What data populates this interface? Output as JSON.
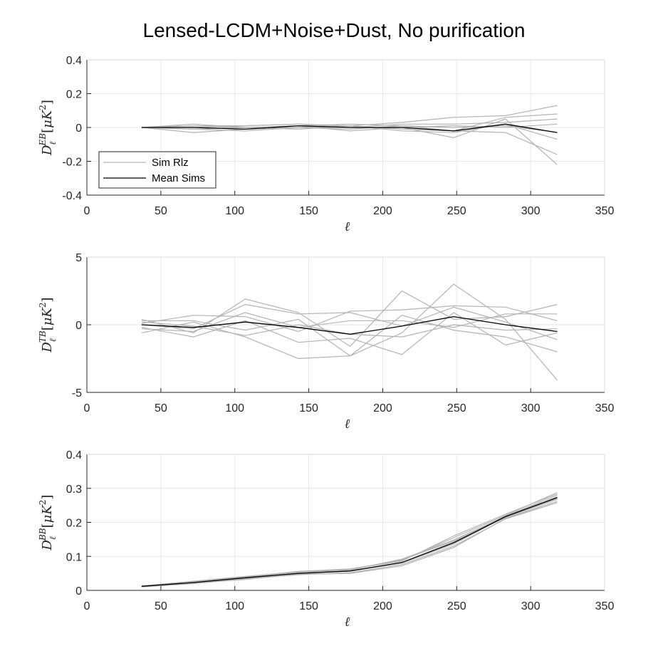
{
  "figure": {
    "title": "Lensed-LCDM+Noise+Dust, No purification",
    "background": "#ffffff"
  },
  "legend": {
    "entries": [
      {
        "label": "Sim Rlz",
        "color": "#b3b3b3"
      },
      {
        "label": "Mean Sims",
        "color": "#000000"
      }
    ],
    "location": "lower-left of top panel"
  },
  "chart_data": [
    {
      "type": "line",
      "panel": "EB",
      "xlabel": "ℓ",
      "ylabel": "D_ℓ^{EB} [μK²]",
      "ylabel_display": {
        "base": "D",
        "sub": "ℓ",
        "sup": "EB",
        "unit_open": "[",
        "mu": "μ",
        "K": "K",
        "unit_sup": "2",
        "unit_close": "]"
      },
      "xlim": [
        0,
        350
      ],
      "ylim": [
        -0.4,
        0.4
      ],
      "xticks": [
        0,
        50,
        100,
        150,
        200,
        250,
        300,
        350
      ],
      "yticks": [
        -0.4,
        -0.2,
        0,
        0.2,
        0.4
      ],
      "ytick_labels": [
        "-0.4",
        "-0.2",
        "0",
        "0.2",
        "0.4"
      ],
      "grid": true,
      "x": [
        37,
        72,
        107,
        143,
        178,
        213,
        248,
        283,
        318
      ],
      "sim_color": "#b3b3b3",
      "mean_color": "#000000",
      "sims": [
        [
          0.0,
          0.01,
          0.01,
          0.02,
          0.01,
          0.03,
          0.06,
          0.07,
          0.13
        ],
        [
          0.0,
          -0.01,
          0.0,
          0.01,
          0.02,
          0.01,
          -0.02,
          0.06,
          0.08
        ],
        [
          0.0,
          0.0,
          -0.01,
          0.0,
          0.0,
          0.02,
          0.02,
          0.03,
          0.05
        ],
        [
          0.0,
          -0.03,
          -0.01,
          0.01,
          -0.02,
          0.0,
          -0.06,
          0.05,
          -0.22
        ],
        [
          0.0,
          0.02,
          0.0,
          -0.01,
          0.01,
          -0.01,
          -0.02,
          -0.03,
          -0.16
        ],
        [
          0.0,
          0.0,
          0.01,
          0.02,
          0.0,
          0.0,
          0.01,
          0.0,
          0.02
        ],
        [
          0.0,
          -0.01,
          -0.02,
          0.0,
          0.01,
          -0.02,
          -0.03,
          0.02,
          -0.07
        ],
        [
          0.0,
          0.01,
          0.0,
          0.0,
          -0.01,
          0.01,
          0.0,
          0.01,
          -0.03
        ]
      ],
      "mean": [
        0.0,
        0.0,
        -0.01,
        0.01,
        0.0,
        0.0,
        -0.02,
        0.02,
        -0.03
      ]
    },
    {
      "type": "line",
      "panel": "TB",
      "xlabel": "ℓ",
      "ylabel": "D_ℓ^{TB} [μK²]",
      "ylabel_display": {
        "base": "D",
        "sub": "ℓ",
        "sup": "TB",
        "unit_open": "[",
        "mu": "μ",
        "K": "K",
        "unit_sup": "2",
        "unit_close": "]"
      },
      "xlim": [
        0,
        350
      ],
      "ylim": [
        -5,
        5
      ],
      "xticks": [
        0,
        50,
        100,
        150,
        200,
        250,
        300,
        350
      ],
      "yticks": [
        -5,
        0,
        5
      ],
      "ytick_labels": [
        "-5",
        "0",
        "5"
      ],
      "grid": true,
      "x": [
        37,
        72,
        107,
        143,
        178,
        213,
        248,
        283,
        318
      ],
      "sim_color": "#b3b3b3",
      "mean_color": "#000000",
      "sims": [
        [
          0.4,
          -0.6,
          1.9,
          0.9,
          -1.6,
          2.5,
          0.4,
          0.6,
          1.5
        ],
        [
          -0.6,
          0.2,
          -0.9,
          -2.5,
          -2.3,
          -0.6,
          3.0,
          0.4,
          -4.1
        ],
        [
          0.1,
          0.7,
          0.6,
          -0.5,
          1.0,
          1.1,
          1.4,
          1.3,
          0.3
        ],
        [
          -0.2,
          -0.9,
          0.3,
          -1.3,
          -1.0,
          -2.2,
          0.9,
          -1.5,
          -0.6
        ],
        [
          0.3,
          0.3,
          -0.4,
          0.4,
          -2.3,
          0.7,
          -0.4,
          -0.9,
          -2.0
        ],
        [
          0.0,
          -0.3,
          1.5,
          0.8,
          0.9,
          -0.1,
          1.3,
          0.2,
          -1.1
        ],
        [
          -0.3,
          -0.5,
          0.9,
          -0.2,
          0.3,
          0.3,
          -0.2,
          0.8,
          0.8
        ],
        [
          0.2,
          -0.1,
          -0.8,
          0.0,
          -0.7,
          -0.9,
          0.0,
          -0.4,
          -0.3
        ]
      ],
      "mean": [
        0.0,
        -0.2,
        0.2,
        -0.2,
        -0.7,
        -0.1,
        0.6,
        0.0,
        -0.5
      ]
    },
    {
      "type": "line",
      "panel": "BB",
      "xlabel": "ℓ",
      "ylabel": "D_ℓ^{BB} [μK²]",
      "ylabel_display": {
        "base": "D",
        "sub": "ℓ",
        "sup": "BB",
        "unit_open": "[",
        "mu": "μ",
        "K": "K",
        "unit_sup": "2",
        "unit_close": "]"
      },
      "xlim": [
        0,
        350
      ],
      "ylim": [
        0,
        0.4
      ],
      "xticks": [
        0,
        50,
        100,
        150,
        200,
        250,
        300,
        350
      ],
      "yticks": [
        0,
        0.1,
        0.2,
        0.3,
        0.4
      ],
      "ytick_labels": [
        "0",
        "0.1",
        "0.2",
        "0.3",
        "0.4"
      ],
      "grid": true,
      "x": [
        37,
        72,
        107,
        143,
        178,
        213,
        248,
        283,
        318
      ],
      "sim_color": "#b3b3b3",
      "mean_color": "#000000",
      "sims": [
        [
          0.012,
          0.024,
          0.04,
          0.056,
          0.063,
          0.088,
          0.155,
          0.221,
          0.288
        ],
        [
          0.01,
          0.02,
          0.034,
          0.046,
          0.052,
          0.076,
          0.13,
          0.21,
          0.258
        ],
        [
          0.013,
          0.026,
          0.038,
          0.05,
          0.06,
          0.092,
          0.148,
          0.218,
          0.275
        ],
        [
          0.011,
          0.022,
          0.036,
          0.052,
          0.058,
          0.082,
          0.142,
          0.214,
          0.268
        ],
        [
          0.012,
          0.021,
          0.032,
          0.048,
          0.05,
          0.072,
          0.126,
          0.212,
          0.262
        ],
        [
          0.013,
          0.027,
          0.041,
          0.054,
          0.062,
          0.086,
          0.16,
          0.224,
          0.284
        ],
        [
          0.011,
          0.023,
          0.037,
          0.049,
          0.057,
          0.08,
          0.136,
          0.216,
          0.27
        ],
        [
          0.012,
          0.025,
          0.039,
          0.051,
          0.061,
          0.09,
          0.145,
          0.219,
          0.28
        ]
      ],
      "mean": [
        0.012,
        0.023,
        0.037,
        0.05,
        0.057,
        0.082,
        0.14,
        0.217,
        0.273
      ]
    }
  ]
}
